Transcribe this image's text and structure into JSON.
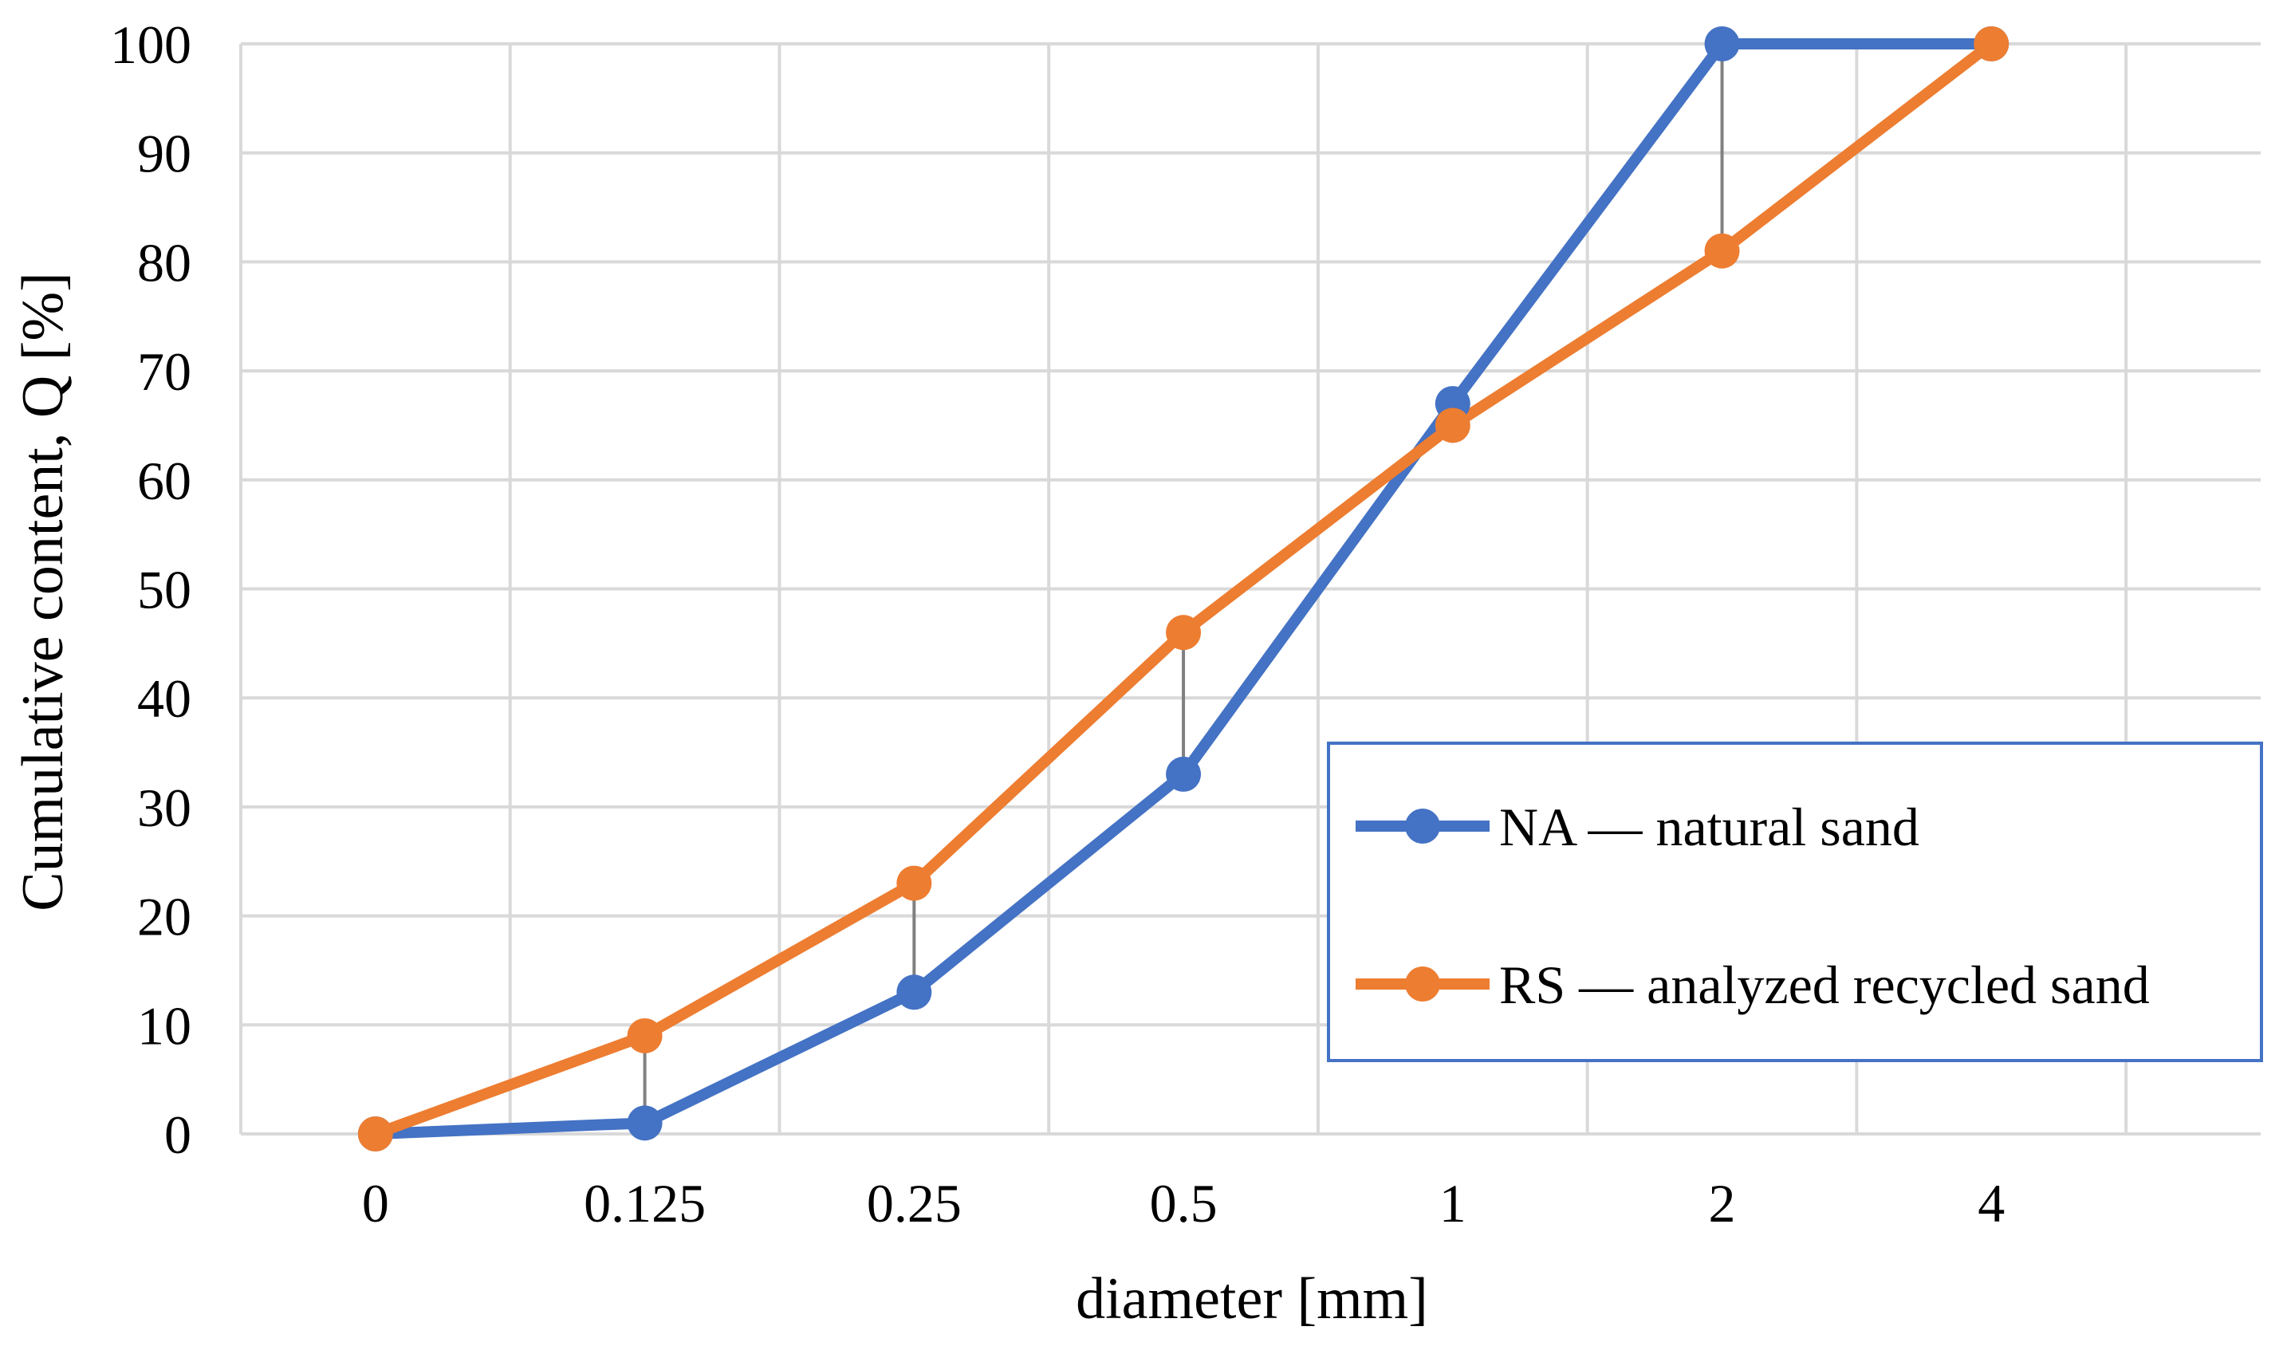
{
  "chart_data": {
    "type": "line",
    "title": "",
    "xlabel": "diameter [mm]",
    "ylabel": "Cumulative content, Q [%]",
    "categories": [
      "0",
      "0.125",
      "0.25",
      "0.5",
      "1",
      "2",
      "4"
    ],
    "ylim": [
      0,
      100
    ],
    "yticks": [
      0,
      10,
      20,
      30,
      40,
      50,
      60,
      70,
      80,
      90,
      100
    ],
    "grid": true,
    "legend_position": "right",
    "high_low_lines": true,
    "series": [
      {
        "name": "NA — natural sand",
        "color": "#4472C4",
        "values": [
          0,
          1,
          13,
          33,
          67,
          100,
          100
        ]
      },
      {
        "name": "RS — analyzed recycled sand",
        "color": "#ED7D31",
        "values": [
          0,
          9,
          23,
          46,
          65,
          81,
          100
        ]
      }
    ]
  }
}
